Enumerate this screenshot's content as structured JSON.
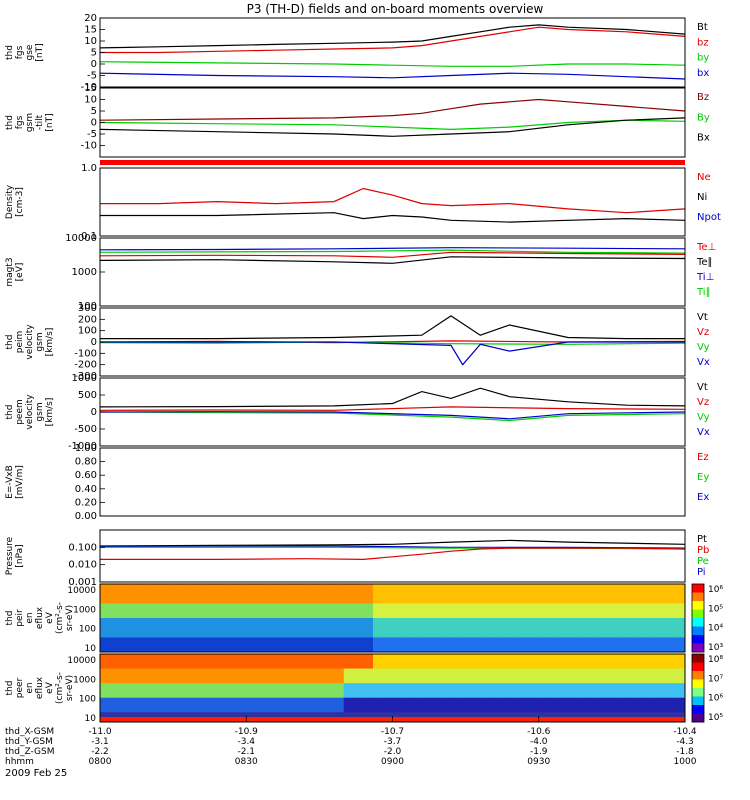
{
  "figure": {
    "title": "P3 (TH-D) fields and on-board moments overview",
    "date": "2009 Feb 25",
    "colors": {
      "black": "#000000",
      "red": "#dd0000",
      "green": "#00cc00",
      "blue": "#0000cc",
      "darkred": "#880000"
    }
  },
  "chart_data": [
    {
      "id": "fgs_gse",
      "type": "line",
      "ylabel": [
        "thd",
        "fgs",
        "gse",
        "[nT]"
      ],
      "ylim": [
        -10,
        20
      ],
      "yticks": [
        -10,
        -5,
        0,
        5,
        10,
        15,
        20
      ],
      "legend": [
        {
          "name": "Bt",
          "color": "#000000"
        },
        {
          "name": "bz",
          "color": "#dd0000"
        },
        {
          "name": "by",
          "color": "#00cc00"
        },
        {
          "name": "bx",
          "color": "#0000cc"
        }
      ],
      "series": [
        {
          "name": "Bt",
          "color": "#000000",
          "t": [
            0,
            0.1,
            0.2,
            0.3,
            0.4,
            0.5,
            0.55,
            0.6,
            0.65,
            0.7,
            0.75,
            0.8,
            0.9,
            1.0
          ],
          "values": [
            7,
            7.5,
            8,
            8.5,
            9,
            9.5,
            10,
            12,
            14,
            16,
            17,
            16,
            15,
            13
          ]
        },
        {
          "name": "bz",
          "color": "#dd0000",
          "t": [
            0,
            0.1,
            0.2,
            0.3,
            0.4,
            0.5,
            0.55,
            0.6,
            0.65,
            0.7,
            0.75,
            0.8,
            0.9,
            1.0
          ],
          "values": [
            5,
            5,
            5.5,
            6,
            6.5,
            7,
            8,
            10,
            12,
            14,
            16,
            15,
            14,
            12
          ]
        },
        {
          "name": "by",
          "color": "#00cc00",
          "t": [
            0,
            0.2,
            0.4,
            0.5,
            0.6,
            0.7,
            0.8,
            0.9,
            1.0
          ],
          "values": [
            1,
            0.5,
            0,
            -0.5,
            -1,
            -1,
            0,
            0,
            -0.5
          ]
        },
        {
          "name": "bx",
          "color": "#0000cc",
          "t": [
            0,
            0.2,
            0.4,
            0.5,
            0.6,
            0.7,
            0.8,
            0.9,
            1.0
          ],
          "values": [
            -4,
            -5,
            -5.5,
            -6,
            -5,
            -4,
            -4.5,
            -5.5,
            -6.5
          ]
        }
      ]
    },
    {
      "id": "fgs_gsm",
      "type": "line",
      "ylabel": [
        "thd",
        "fgs",
        "gsm",
        "-tilt",
        "[nT]"
      ],
      "ylim": [
        -15,
        15
      ],
      "yticks": [
        -10,
        -5,
        0,
        5,
        10,
        15
      ],
      "legend": [
        {
          "name": "Bz",
          "color": "#880000"
        },
        {
          "name": "By",
          "color": "#00cc00"
        },
        {
          "name": "Bx",
          "color": "#000000"
        }
      ],
      "series": [
        {
          "name": "Bz",
          "color": "#880000",
          "t": [
            0,
            0.2,
            0.4,
            0.5,
            0.55,
            0.6,
            0.65,
            0.7,
            0.75,
            0.8,
            0.9,
            1.0
          ],
          "values": [
            1,
            1.5,
            2,
            3,
            4,
            6,
            8,
            9,
            10,
            9,
            7,
            5
          ]
        },
        {
          "name": "By",
          "color": "#00cc00",
          "t": [
            0,
            0.2,
            0.4,
            0.5,
            0.6,
            0.7,
            0.8,
            0.9,
            1.0
          ],
          "values": [
            0,
            -0.5,
            -1,
            -2,
            -3,
            -2,
            0,
            1,
            0.5
          ]
        },
        {
          "name": "Bx",
          "color": "#000000",
          "t": [
            0,
            0.2,
            0.4,
            0.5,
            0.6,
            0.7,
            0.8,
            0.9,
            1.0
          ],
          "values": [
            -3,
            -4,
            -5,
            -6,
            -5,
            -4,
            -1,
            1,
            2
          ]
        }
      ]
    },
    {
      "id": "density",
      "type": "line",
      "log": true,
      "ylabel": [
        "Density",
        "[cm-3]"
      ],
      "ylim": [
        0.1,
        1.0
      ],
      "ytick_labels": [
        "1.0",
        "0.1"
      ],
      "legend": [
        {
          "name": "Ne",
          "color": "#dd0000"
        },
        {
          "name": "Ni",
          "color": "#000000"
        },
        {
          "name": "Npot",
          "color": "#0000cc"
        }
      ],
      "series": [
        {
          "name": "Ne",
          "color": "#dd0000",
          "t": [
            0,
            0.1,
            0.2,
            0.3,
            0.4,
            0.45,
            0.5,
            0.55,
            0.6,
            0.7,
            0.8,
            0.9,
            1.0
          ],
          "values": [
            0.3,
            0.3,
            0.32,
            0.3,
            0.32,
            0.5,
            0.4,
            0.3,
            0.28,
            0.3,
            0.25,
            0.22,
            0.25
          ]
        },
        {
          "name": "Ni",
          "color": "#000000",
          "t": [
            0,
            0.2,
            0.4,
            0.45,
            0.5,
            0.55,
            0.6,
            0.7,
            0.8,
            0.9,
            1.0
          ],
          "values": [
            0.2,
            0.2,
            0.22,
            0.18,
            0.2,
            0.19,
            0.17,
            0.16,
            0.17,
            0.18,
            0.17
          ]
        }
      ]
    },
    {
      "id": "temperature",
      "type": "line",
      "log": true,
      "ylabel": [
        "magt3",
        "[eV]"
      ],
      "ylim": [
        100,
        10000
      ],
      "ytick_labels": [
        "10000",
        "1000",
        "100"
      ],
      "legend": [
        {
          "name": "Te⊥",
          "color": "#dd0000"
        },
        {
          "name": "Te∥",
          "color": "#000000"
        },
        {
          "name": "Ti⊥",
          "color": "#0000cc"
        },
        {
          "name": "Ti∥",
          "color": "#00cc00"
        }
      ],
      "series": [
        {
          "name": "Ti⊥",
          "color": "#0000cc",
          "t": [
            0,
            0.2,
            0.4,
            0.6,
            0.8,
            1.0
          ],
          "values": [
            4500,
            4600,
            4800,
            5200,
            5000,
            4800
          ]
        },
        {
          "name": "Ti∥",
          "color": "#00cc00",
          "t": [
            0,
            0.2,
            0.4,
            0.6,
            0.8,
            1.0
          ],
          "values": [
            3800,
            3900,
            4000,
            4400,
            3800,
            3600
          ]
        },
        {
          "name": "Te⊥",
          "color": "#dd0000",
          "t": [
            0,
            0.2,
            0.4,
            0.5,
            0.6,
            0.8,
            1.0
          ],
          "values": [
            3000,
            3100,
            3000,
            2700,
            3800,
            3500,
            3300
          ]
        },
        {
          "name": "Te∥",
          "color": "#000000",
          "t": [
            0,
            0.2,
            0.4,
            0.5,
            0.6,
            0.8,
            1.0
          ],
          "values": [
            2200,
            2300,
            2000,
            1800,
            2800,
            2600,
            2500
          ]
        }
      ]
    },
    {
      "id": "peim_velocity",
      "type": "line",
      "ylabel": [
        "thd",
        "peim",
        "velocity",
        "gsm",
        "[km/s]"
      ],
      "ylim": [
        -300,
        300
      ],
      "yticks": [
        -300,
        -200,
        -100,
        0,
        100,
        200,
        300
      ],
      "legend": [
        {
          "name": "Vt",
          "color": "#000000"
        },
        {
          "name": "Vz",
          "color": "#dd0000"
        },
        {
          "name": "Vy",
          "color": "#00cc00"
        },
        {
          "name": "Vx",
          "color": "#0000cc"
        }
      ],
      "series": [
        {
          "name": "Vt",
          "color": "#000000",
          "t": [
            0,
            0.2,
            0.4,
            0.55,
            0.6,
            0.65,
            0.7,
            0.8,
            0.9,
            1.0
          ],
          "values": [
            30,
            30,
            40,
            60,
            230,
            60,
            150,
            40,
            30,
            30
          ]
        },
        {
          "name": "Vz",
          "color": "#dd0000",
          "t": [
            0,
            0.2,
            0.4,
            0.6,
            0.8,
            1.0
          ],
          "values": [
            0,
            5,
            -5,
            10,
            0,
            5
          ]
        },
        {
          "name": "Vy",
          "color": "#00cc00",
          "t": [
            0,
            0.2,
            0.4,
            0.6,
            0.8,
            1.0
          ],
          "values": [
            -5,
            -10,
            0,
            -15,
            -20,
            -10
          ]
        },
        {
          "name": "Vx",
          "color": "#0000cc",
          "t": [
            0,
            0.2,
            0.4,
            0.6,
            0.62,
            0.65,
            0.7,
            0.8,
            1.0
          ],
          "values": [
            0,
            0,
            0,
            -30,
            -200,
            -20,
            -80,
            0,
            0
          ]
        }
      ]
    },
    {
      "id": "peem_velocity",
      "type": "line",
      "ylabel": [
        "thd",
        "peem",
        "velocity",
        "gsm",
        "[km/s]"
      ],
      "ylim": [
        -1000,
        1000
      ],
      "yticks": [
        -1000,
        -500,
        0,
        500,
        1000
      ],
      "legend": [
        {
          "name": "Vt",
          "color": "#000000"
        },
        {
          "name": "Vz",
          "color": "#dd0000"
        },
        {
          "name": "Vy",
          "color": "#00cc00"
        },
        {
          "name": "Vx",
          "color": "#0000cc"
        }
      ],
      "series": [
        {
          "name": "Vt",
          "color": "#000000",
          "t": [
            0,
            0.2,
            0.4,
            0.5,
            0.55,
            0.6,
            0.65,
            0.7,
            0.8,
            0.9,
            1.0
          ],
          "values": [
            150,
            160,
            180,
            250,
            600,
            400,
            700,
            450,
            300,
            200,
            180
          ]
        },
        {
          "name": "Vz",
          "color": "#dd0000",
          "t": [
            0,
            0.2,
            0.4,
            0.6,
            0.8,
            1.0
          ],
          "values": [
            50,
            60,
            50,
            150,
            100,
            80
          ]
        },
        {
          "name": "Vy",
          "color": "#00cc00",
          "t": [
            0,
            0.2,
            0.4,
            0.6,
            0.7,
            0.8,
            1.0
          ],
          "values": [
            0,
            -20,
            -30,
            -150,
            -250,
            -100,
            -50
          ]
        },
        {
          "name": "Vx",
          "color": "#0000cc",
          "t": [
            0,
            0.2,
            0.4,
            0.6,
            0.7,
            0.8,
            1.0
          ],
          "values": [
            0,
            10,
            0,
            -100,
            -200,
            -50,
            0
          ]
        }
      ]
    },
    {
      "id": "efield",
      "type": "line",
      "ylabel": [
        "E=-VxB",
        "[mV/m]"
      ],
      "ylim": [
        0,
        1
      ],
      "yticks": [
        0,
        0.2,
        0.4,
        0.6,
        0.8,
        1.0
      ],
      "ytick_labels": [
        "0.00",
        "0.20",
        "0.40",
        "0.60",
        "0.80",
        "1.00"
      ],
      "legend": [
        {
          "name": "Ez",
          "color": "#dd0000"
        },
        {
          "name": "Ey",
          "color": "#00cc00"
        },
        {
          "name": "Ex",
          "color": "#0000cc"
        }
      ],
      "series": []
    },
    {
      "id": "pressure",
      "type": "line",
      "log": true,
      "ylabel": [
        "Pressure",
        "[nPa]"
      ],
      "ylim": [
        0.001,
        1.0
      ],
      "ytick_labels": [
        "0.100",
        "0.010",
        "0.001"
      ],
      "legend": [
        {
          "name": "Pt",
          "color": "#000000"
        },
        {
          "name": "Pb",
          "color": "#dd0000"
        },
        {
          "name": "Pe",
          "color": "#00cc00"
        },
        {
          "name": "Pi",
          "color": "#0000cc"
        }
      ],
      "series": [
        {
          "name": "Pt",
          "color": "#000000",
          "t": [
            0,
            0.2,
            0.4,
            0.5,
            0.6,
            0.7,
            0.8,
            1.0
          ],
          "values": [
            0.12,
            0.13,
            0.14,
            0.15,
            0.2,
            0.25,
            0.2,
            0.15
          ]
        },
        {
          "name": "Pi",
          "color": "#0000cc",
          "t": [
            0,
            0.2,
            0.4,
            0.6,
            0.8,
            1.0
          ],
          "values": [
            0.11,
            0.12,
            0.12,
            0.1,
            0.1,
            0.09
          ]
        },
        {
          "name": "Pe",
          "color": "#00cc00",
          "t": [
            0,
            0.2,
            0.4,
            0.6,
            0.8,
            1.0
          ],
          "values": [
            0.1,
            0.1,
            0.1,
            0.09,
            0.09,
            0.08
          ]
        },
        {
          "name": "Pb",
          "color": "#dd0000",
          "t": [
            0,
            0.2,
            0.35,
            0.45,
            0.55,
            0.6,
            0.65,
            0.7,
            0.8,
            0.9,
            1.0
          ],
          "values": [
            0.02,
            0.02,
            0.022,
            0.02,
            0.04,
            0.06,
            0.08,
            0.09,
            0.09,
            0.09,
            0.08
          ]
        }
      ]
    },
    {
      "id": "peir_eflux",
      "type": "heatmap",
      "ylabel": [
        "thd",
        "peir",
        "en",
        "eflux",
        "eV",
        "(cm²-s-",
        "sr-eV)"
      ],
      "ytick_labels": [
        "10000",
        "1000",
        "100",
        "10"
      ],
      "colorbar_labels": [
        "10⁶",
        "10⁵",
        "10⁴",
        "10³"
      ]
    },
    {
      "id": "peer_eflux",
      "type": "heatmap",
      "ylabel": [
        "thd",
        "peer",
        "en",
        "eflux",
        "eV",
        "(cm²-s-",
        "sr-eV)"
      ],
      "ytick_labels": [
        "10000",
        "1000",
        "100",
        "10"
      ],
      "colorbar_labels": [
        "10⁸",
        "10⁷",
        "10⁶",
        "10⁵"
      ]
    }
  ],
  "xaxis": {
    "ticks": [
      0,
      0.25,
      0.5,
      0.75,
      1.0
    ],
    "rows": [
      {
        "label": "thd_X-GSM",
        "values": [
          "-11.0",
          "-10.9",
          "-10.7",
          "-10.6",
          "-10.4"
        ]
      },
      {
        "label": "thd_Y-GSM",
        "values": [
          "-3.1",
          "-3.4",
          "-3.7",
          "-4.0",
          "-4.3"
        ]
      },
      {
        "label": "thd_Z-GSM",
        "values": [
          "-2.2",
          "-2.1",
          "-2.0",
          "-1.9",
          "-1.8"
        ]
      },
      {
        "label": "hhmm",
        "values": [
          "0800",
          "0830",
          "0900",
          "0930",
          "1000"
        ]
      }
    ]
  }
}
